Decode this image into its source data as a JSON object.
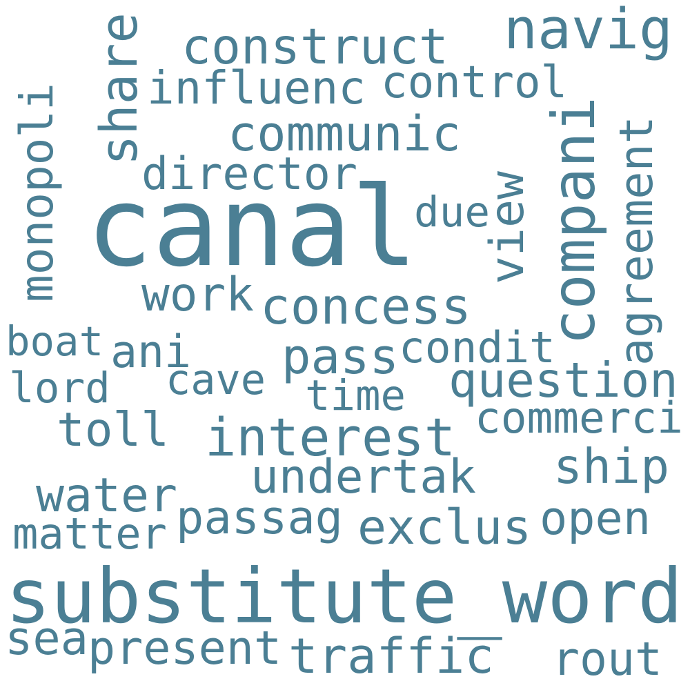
{
  "color": "#4b7f94",
  "words": [
    "canal",
    "substitute_word",
    "compani",
    "interest",
    "navig",
    "construct",
    "concess",
    "traffic",
    "influenc",
    "communic",
    "share",
    "control",
    "director",
    "exclus",
    "question",
    "pass",
    "undertak",
    "passag",
    "present",
    "monopoli",
    "agreement",
    "toll",
    "water",
    "ship",
    "open",
    "view",
    "condit",
    "commerci",
    "work",
    "ani",
    "rout",
    "boat",
    "lord",
    "cave",
    "time",
    "matter",
    "sea",
    "due"
  ]
}
